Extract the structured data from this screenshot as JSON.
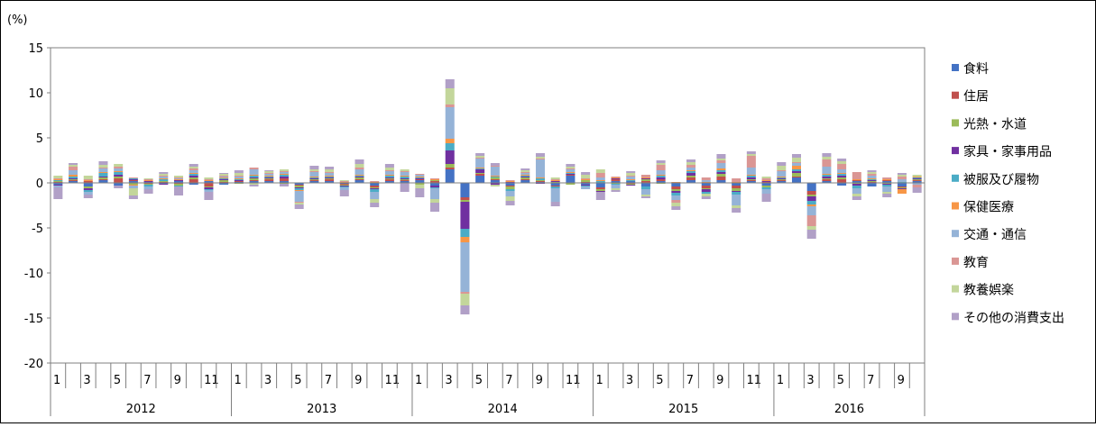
{
  "chart_data": {
    "type": "bar",
    "stacked": true,
    "unit_label": "(%)",
    "ylim": [
      -20,
      15
    ],
    "yticks": [
      15,
      10,
      5,
      0,
      -5,
      -10,
      -15,
      -20
    ],
    "grid": false,
    "legend_position": "right",
    "years": [
      "2012",
      "2013",
      "2014",
      "2015",
      "2016"
    ],
    "x_month_labels": [
      "1",
      "3",
      "5",
      "7",
      "9",
      "11"
    ],
    "last_year_month_labels": [
      "1",
      "3",
      "5",
      "7",
      "9"
    ],
    "months_per_year": [
      12,
      12,
      12,
      12,
      10
    ],
    "series": [
      {
        "name": "食料",
        "color": "#4472C4",
        "values": [
          -0.2,
          0.2,
          -0.4,
          0.3,
          -0.3,
          0.2,
          0.1,
          -0.1,
          0.2,
          -0.2,
          0.2,
          -0.2,
          0.1,
          0.2,
          0.2,
          0.2,
          -0.2,
          0.2,
          0.2,
          -0.1,
          0.3,
          -0.3,
          0.2,
          0.2,
          0.3,
          -0.3,
          1.5,
          -1.6,
          0.8,
          0.3,
          -0.3,
          0.3,
          0.1,
          -0.3,
          0.8,
          -0.2,
          -0.5,
          0.2,
          0.2,
          -0.4,
          0.2,
          -0.4,
          0.3,
          -0.3,
          0.3,
          -0.3,
          0.2,
          -0.3,
          0.2,
          0.6,
          -0.9,
          0.2,
          -0.3,
          0.2,
          -0.4,
          0.2,
          -0.4,
          0.2
        ]
      },
      {
        "name": "住居",
        "color": "#C0504D",
        "values": [
          0.1,
          0.1,
          0.2,
          0.1,
          0.5,
          0.1,
          -0.1,
          0.1,
          -0.1,
          0.4,
          -0.4,
          0.1,
          0.1,
          0.1,
          0.2,
          0.3,
          -0.1,
          0.1,
          0.2,
          -0.1,
          0.1,
          -0.2,
          0.2,
          0.1,
          0.1,
          0.2,
          0.2,
          -0.3,
          0.2,
          0.1,
          -0.1,
          0.1,
          0.1,
          -0.1,
          0.1,
          0.1,
          -0.2,
          0.2,
          -0.1,
          0.2,
          0.2,
          -0.3,
          0.3,
          -0.3,
          0.4,
          -0.3,
          0.1,
          0.1,
          0.1,
          0.1,
          -0.4,
          0.2,
          0.4,
          0.1,
          0.1,
          0.1,
          -0.1,
          0.1
        ]
      },
      {
        "name": "光熱・水道",
        "color": "#9BBB59",
        "values": [
          0.1,
          0.1,
          -0.2,
          0.2,
          0.2,
          -0.2,
          -0.1,
          0.1,
          -0.2,
          0.2,
          -0.1,
          0.2,
          -0.1,
          0.2,
          0.1,
          -0.1,
          -0.2,
          0.1,
          0.1,
          -0.1,
          0.2,
          -0.1,
          0.1,
          0.1,
          -0.2,
          0.1,
          0.4,
          -0.2,
          0.1,
          0.2,
          -0.3,
          0.2,
          0.1,
          0.1,
          -0.2,
          0.2,
          -0.2,
          -0.1,
          -0.1,
          0.2,
          -0.1,
          -0.2,
          0.2,
          -0.1,
          0.3,
          -0.3,
          0.1,
          -0.2,
          0.1,
          0.4,
          -0.2,
          0.1,
          0.2,
          -0.1,
          0.1,
          -0.1,
          -0.1,
          0.1
        ]
      },
      {
        "name": "家具・家事用品",
        "color": "#7030A0",
        "values": [
          -0.1,
          0.1,
          -0.2,
          0.1,
          0.2,
          0.1,
          0.1,
          -0.1,
          0.1,
          0.2,
          -0.2,
          0.1,
          0.1,
          0.1,
          0.1,
          0.2,
          -0.1,
          0.1,
          0.1,
          -0.1,
          0.1,
          -0.1,
          0.1,
          0.1,
          0.1,
          -0.2,
          1.5,
          -3.0,
          0.4,
          -0.2,
          0.1,
          0.1,
          -0.1,
          0.1,
          0.1,
          -0.1,
          -0.1,
          0.1,
          -0.1,
          0.1,
          0.2,
          -0.2,
          0.3,
          -0.3,
          0.2,
          -0.1,
          0.2,
          0.1,
          0.1,
          0.2,
          -0.5,
          0.2,
          0.2,
          -0.2,
          0.1,
          -0.1,
          -0.1,
          0.1
        ]
      },
      {
        "name": "被服及び履物",
        "color": "#4BACC6",
        "values": [
          0.1,
          0.2,
          -0.2,
          0.4,
          0.3,
          0.1,
          -0.2,
          0.2,
          -0.1,
          0.2,
          -0.1,
          0.1,
          0.1,
          0.2,
          0.1,
          0.2,
          -0.2,
          0.1,
          0.1,
          -0.1,
          0.1,
          -0.3,
          0.2,
          0.2,
          0.1,
          -0.1,
          0.8,
          -0.9,
          0.1,
          0.1,
          -0.2,
          0.1,
          0.2,
          -0.2,
          0.1,
          -0.1,
          0.2,
          -0.1,
          0.1,
          -0.3,
          0.2,
          -0.3,
          0.2,
          -0.2,
          0.2,
          -0.3,
          0.2,
          -0.2,
          0.1,
          0.2,
          -0.4,
          0.2,
          0.2,
          -0.3,
          0.1,
          -0.2,
          0.1,
          0.1
        ]
      },
      {
        "name": "保健医療",
        "color": "#F79646",
        "values": [
          0.1,
          0.2,
          0.1,
          0.1,
          0.1,
          -0.1,
          0.1,
          0.1,
          0.1,
          0.1,
          0.1,
          0.1,
          0.1,
          0.1,
          0.1,
          0.1,
          -0.1,
          0.1,
          0.1,
          0.1,
          0.1,
          0.1,
          0.1,
          0.1,
          0.1,
          0.1,
          0.5,
          -0.6,
          0.1,
          0.1,
          0.1,
          0.1,
          0.1,
          0.1,
          0.1,
          0.1,
          0.1,
          0.1,
          0.1,
          0.1,
          0.1,
          0.1,
          0.1,
          0.1,
          0.2,
          0.1,
          0.1,
          0.1,
          0.1,
          0.4,
          -0.2,
          0.1,
          0.1,
          0.1,
          0.1,
          0.1,
          -0.5,
          0.1
        ]
      },
      {
        "name": "交通・通信",
        "color": "#95B3D7",
        "values": [
          -0.2,
          0.5,
          -0.3,
          0.4,
          0.3,
          -0.3,
          -0.3,
          0.2,
          0.1,
          0.3,
          -0.2,
          0.1,
          0.2,
          0.6,
          0.2,
          0.2,
          -1.2,
          0.5,
          0.3,
          -0.3,
          0.6,
          -0.8,
          0.4,
          0.4,
          0.2,
          -1.2,
          3.5,
          -5.5,
          1.0,
          1.0,
          -0.6,
          0.2,
          2.0,
          -1.5,
          0.3,
          -0.3,
          0.3,
          -0.4,
          0.3,
          -0.6,
          0.5,
          -0.5,
          0.3,
          0.2,
          0.6,
          -1.2,
          0.8,
          -0.5,
          0.6,
          0.3,
          -1.0,
          0.8,
          0.4,
          -0.6,
          0.3,
          -0.6,
          0.3,
          -0.2
        ]
      },
      {
        "name": "教育",
        "color": "#DA9694",
        "values": [
          0.1,
          0.4,
          0.1,
          0.1,
          0.2,
          0.1,
          0.1,
          0.1,
          0.1,
          0.2,
          0.1,
          0.1,
          0.1,
          0.2,
          0.1,
          0.1,
          -0.1,
          0.1,
          0.1,
          0.1,
          0.2,
          0.1,
          0.1,
          0.1,
          0.1,
          0.1,
          0.3,
          -0.2,
          0.1,
          0.1,
          0.1,
          0.1,
          0.1,
          0.1,
          0.1,
          0.1,
          0.5,
          0.1,
          0.1,
          0.3,
          0.6,
          -0.3,
          0.3,
          0.3,
          0.3,
          0.4,
          1.3,
          0.2,
          0.1,
          0.1,
          -1.2,
          0.8,
          0.6,
          0.8,
          0.2,
          0.2,
          0.3,
          -0.3
        ]
      },
      {
        "name": "教養娯楽",
        "color": "#C3D69B",
        "values": [
          0.3,
          0.2,
          0.4,
          0.3,
          0.3,
          -0.8,
          0.1,
          0.2,
          0.2,
          0.2,
          0.2,
          0.2,
          0.3,
          -0.2,
          0.2,
          0.2,
          -0.2,
          0.2,
          0.3,
          0.1,
          0.4,
          -0.4,
          0.3,
          0.2,
          -0.4,
          -0.4,
          1.8,
          -1.3,
          0.2,
          -0.2,
          -0.5,
          0.2,
          0.2,
          0.2,
          0.2,
          0.4,
          0.4,
          -0.2,
          0.3,
          -0.2,
          0.2,
          -0.4,
          0.3,
          -0.3,
          0.2,
          -0.3,
          0.2,
          0.2,
          0.5,
          0.5,
          -0.4,
          0.3,
          0.3,
          -0.3,
          0.2,
          -0.2,
          0.2,
          0.2
        ]
      },
      {
        "name": "その他の消費支出",
        "color": "#B1A0C7",
        "values": [
          -1.3,
          0.2,
          -0.4,
          0.4,
          -0.3,
          -0.4,
          -0.5,
          0.2,
          -1.0,
          0.3,
          -0.9,
          0.1,
          0.3,
          -0.2,
          0.1,
          -0.3,
          -0.5,
          0.4,
          0.3,
          -0.7,
          0.5,
          -0.5,
          0.4,
          -1.0,
          -1.0,
          -1.0,
          1.0,
          -1.0,
          0.3,
          0.3,
          -0.5,
          0.2,
          0.4,
          -0.5,
          0.3,
          0.3,
          -0.9,
          -0.2,
          0.2,
          -0.2,
          0.3,
          -0.4,
          0.3,
          -0.3,
          0.5,
          -0.5,
          0.3,
          -0.9,
          0.4,
          0.4,
          -1.0,
          0.4,
          0.3,
          -0.4,
          0.2,
          -0.4,
          0.2,
          -0.6
        ]
      }
    ]
  }
}
